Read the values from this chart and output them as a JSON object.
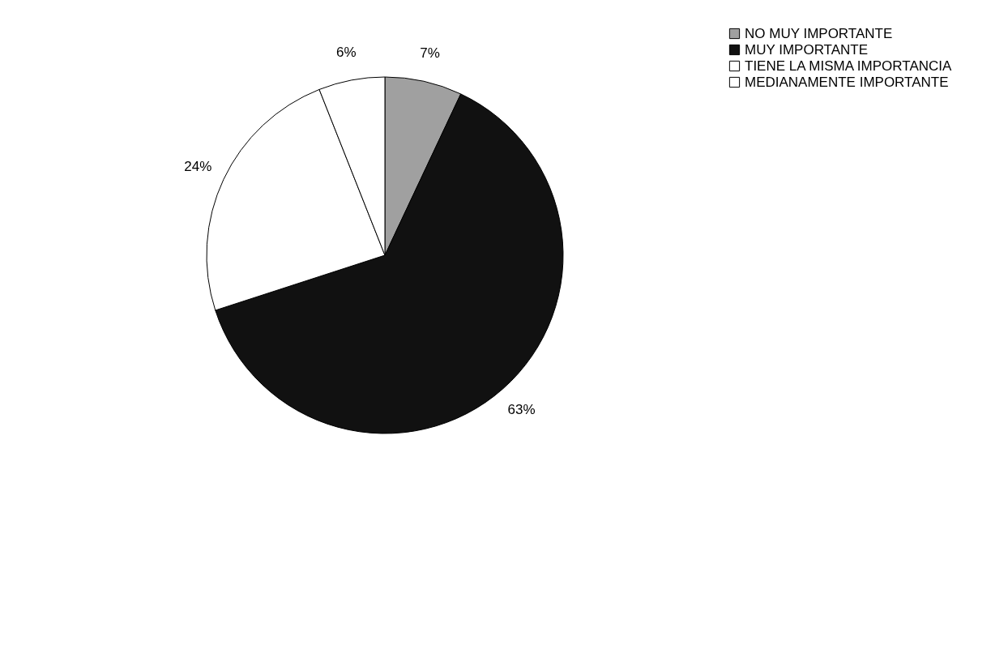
{
  "chart_data": {
    "type": "pie",
    "categories": [
      "NO MUY IMPORTANTE",
      "MUY IMPORTANTE",
      "TIENE LA MISMA IMPORTANCIA",
      "MEDIANAMENTE IMPORTANTE"
    ],
    "values": [
      7,
      63,
      24,
      6
    ],
    "value_labels": [
      "7%",
      "63%",
      "24%",
      "6%"
    ],
    "colors": [
      "#a0a0a0",
      "#111111",
      "#ffffff",
      "#ffffff"
    ],
    "legend": "top right"
  }
}
